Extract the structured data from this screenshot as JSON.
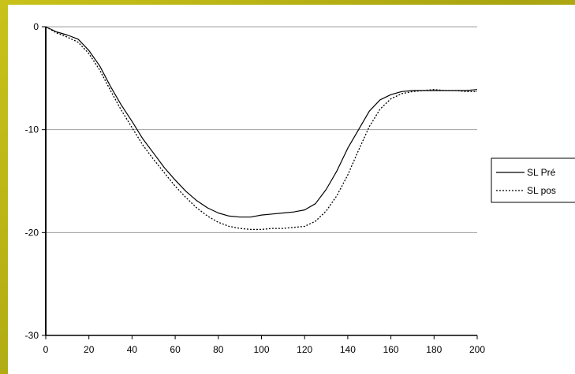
{
  "chart_data": {
    "type": "line",
    "title": "",
    "xlabel": "",
    "ylabel": "",
    "xlim": [
      0,
      200
    ],
    "ylim": [
      -30,
      0
    ],
    "x_ticks": [
      0,
      20,
      40,
      60,
      80,
      100,
      120,
      140,
      160,
      180,
      200
    ],
    "y_ticks": [
      0,
      -10,
      -20,
      -30
    ],
    "x_tick_labels": [
      "0",
      "20",
      "40",
      "60",
      "80",
      "100",
      "120",
      "140",
      "160",
      "180",
      "200"
    ],
    "y_tick_labels": [
      "0",
      "-10",
      "-20",
      "-30"
    ],
    "grid": "horizontal",
    "legend_placement": "right",
    "series": [
      {
        "name": "SL Pré",
        "style": "solid",
        "color": "#000000",
        "x": [
          0,
          5,
          10,
          15,
          20,
          25,
          30,
          35,
          40,
          45,
          50,
          55,
          60,
          65,
          70,
          75,
          80,
          85,
          90,
          95,
          100,
          105,
          110,
          115,
          120,
          125,
          130,
          135,
          140,
          145,
          150,
          155,
          160,
          165,
          170,
          175,
          180,
          185,
          190,
          195,
          200
        ],
        "y": [
          0,
          -0.5,
          -0.8,
          -1.2,
          -2.3,
          -3.8,
          -5.8,
          -7.6,
          -9.2,
          -10.9,
          -12.3,
          -13.7,
          -14.9,
          -16.0,
          -16.9,
          -17.6,
          -18.1,
          -18.4,
          -18.5,
          -18.5,
          -18.3,
          -18.2,
          -18.1,
          -18.0,
          -17.8,
          -17.2,
          -15.8,
          -14.0,
          -11.8,
          -10.0,
          -8.2,
          -7.1,
          -6.6,
          -6.3,
          -6.2,
          -6.2,
          -6.2,
          -6.2,
          -6.2,
          -6.2,
          -6.1
        ]
      },
      {
        "name": "SL pos",
        "style": "dotted",
        "color": "#000000",
        "x": [
          0,
          5,
          10,
          15,
          20,
          25,
          30,
          35,
          40,
          45,
          50,
          55,
          60,
          65,
          70,
          75,
          80,
          85,
          90,
          95,
          100,
          105,
          110,
          115,
          120,
          125,
          130,
          135,
          140,
          145,
          150,
          155,
          160,
          165,
          170,
          175,
          180,
          185,
          190,
          195,
          200
        ],
        "y": [
          0,
          -0.6,
          -1.0,
          -1.5,
          -2.6,
          -4.2,
          -6.2,
          -8.1,
          -9.8,
          -11.5,
          -12.9,
          -14.2,
          -15.5,
          -16.6,
          -17.6,
          -18.4,
          -19.0,
          -19.4,
          -19.6,
          -19.7,
          -19.7,
          -19.6,
          -19.6,
          -19.5,
          -19.4,
          -18.9,
          -17.9,
          -16.4,
          -14.4,
          -12.0,
          -9.7,
          -8.0,
          -7.0,
          -6.5,
          -6.3,
          -6.2,
          -6.1,
          -6.2,
          -6.2,
          -6.3,
          -6.3
        ]
      }
    ]
  }
}
